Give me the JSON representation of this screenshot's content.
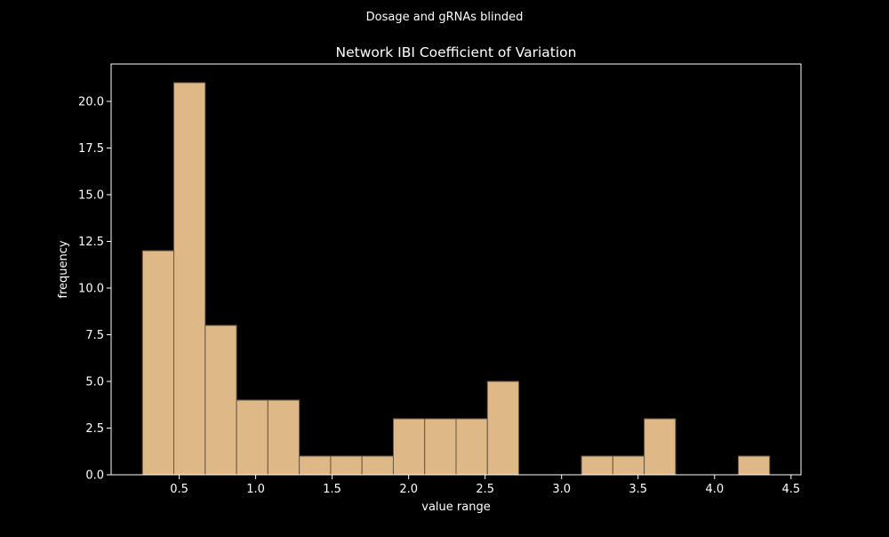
{
  "chart_data": {
    "type": "bar",
    "suptitle": "Dosage and gRNAs blinded",
    "title": "Network IBI Coefficient of Variation",
    "xlabel": "value range",
    "ylabel": "frequency",
    "xlim": [
      0.055,
      4.565
    ],
    "ylim": [
      0,
      22
    ],
    "xticks": [
      0.5,
      1.0,
      1.5,
      2.0,
      2.5,
      3.0,
      3.5,
      4.0,
      4.5
    ],
    "xtick_labels": [
      "0.5",
      "1.0",
      "1.5",
      "2.0",
      "2.5",
      "3.0",
      "3.5",
      "4.0",
      "4.5"
    ],
    "yticks": [
      0,
      2.5,
      5,
      7.5,
      10,
      12.5,
      15,
      17.5,
      20
    ],
    "ytick_labels": [
      "0.0",
      "2.5",
      "5.0",
      "7.5",
      "10.0",
      "12.5",
      "15.0",
      "17.5",
      "20.0"
    ],
    "bin_edges": [
      0.26,
      0.465,
      0.67,
      0.875,
      1.08,
      1.285,
      1.49,
      1.695,
      1.9,
      2.105,
      2.31,
      2.515,
      2.72,
      2.925,
      3.13,
      3.335,
      3.54,
      3.745,
      3.95,
      4.155,
      4.36
    ],
    "counts": [
      12,
      21,
      8,
      4,
      4,
      1,
      1,
      1,
      3,
      3,
      3,
      5,
      0,
      0,
      1,
      1,
      3,
      0,
      0,
      1
    ],
    "bar_color": "#deb887",
    "edge_color": "#6b5640",
    "background": "#000000",
    "foreground": "#ffffff"
  }
}
